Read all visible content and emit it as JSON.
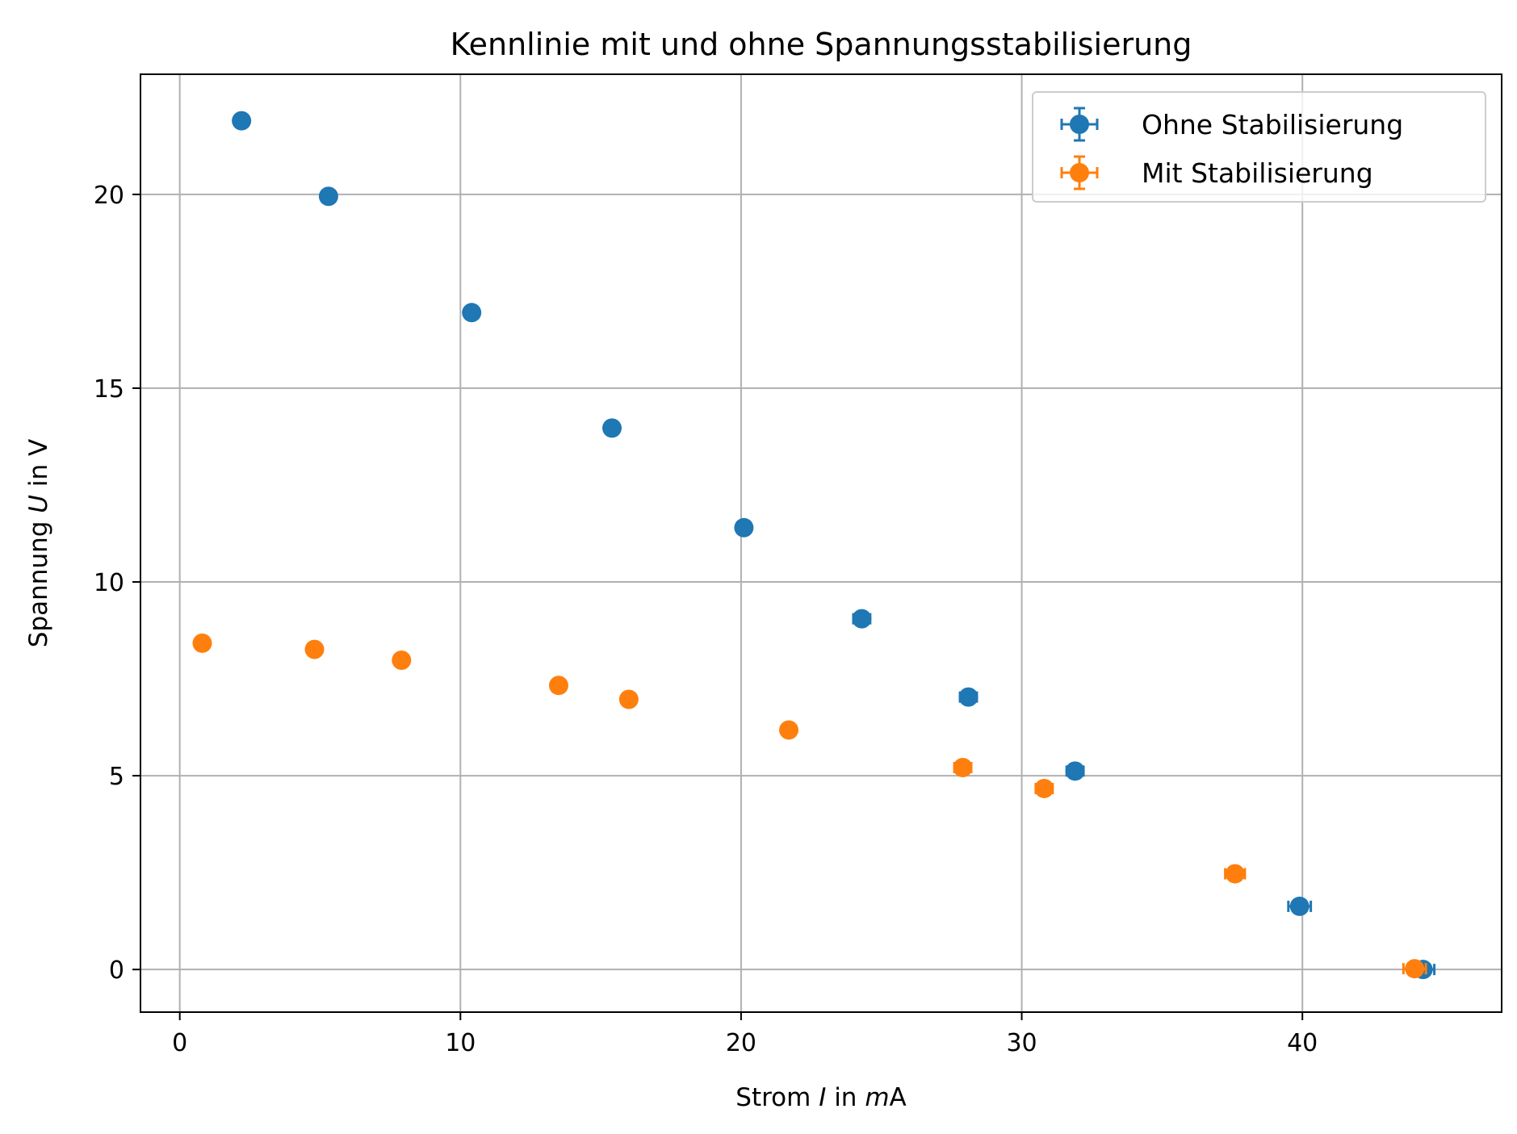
{
  "chart_data": {
    "type": "scatter",
    "title": "Kennlinie mit und ohne Spannungsstabilisierung",
    "xlabel": "Strom I in mA",
    "xlabel_parts": [
      "Strom ",
      "I",
      " in ",
      "m",
      "A"
    ],
    "ylabel": "Spannung U in V",
    "ylabel_parts": [
      "Spannung ",
      "U",
      " in V"
    ],
    "xlim": [
      -1.4,
      47.1
    ],
    "ylim": [
      -1.1,
      23.1
    ],
    "xticks": [
      0,
      10,
      20,
      30,
      40
    ],
    "yticks": [
      0,
      5,
      10,
      15,
      20
    ],
    "grid": true,
    "legend_position": "top-right",
    "series": [
      {
        "name": "Ohne Stabilisierung",
        "color": "#1f77b4",
        "x": [
          2.2,
          5.3,
          10.4,
          15.4,
          20.1,
          24.3,
          28.1,
          31.9,
          39.9,
          44.3
        ],
        "y": [
          21.9,
          19.95,
          16.95,
          13.97,
          11.4,
          9.05,
          7.03,
          5.12,
          1.63,
          0.0
        ],
        "xerr": [
          0.1,
          0.1,
          0.15,
          0.15,
          0.2,
          0.3,
          0.3,
          0.3,
          0.4,
          0.4
        ],
        "yerr": [
          0.05,
          0.05,
          0.05,
          0.05,
          0.05,
          0.05,
          0.05,
          0.05,
          0.05,
          0.05
        ]
      },
      {
        "name": "Mit Stabilisierung",
        "color": "#ff7f0e",
        "x": [
          0.8,
          4.8,
          7.9,
          13.5,
          16.0,
          21.7,
          27.9,
          30.8,
          37.6,
          44.0
        ],
        "y": [
          8.42,
          8.26,
          7.98,
          7.33,
          6.97,
          6.18,
          5.21,
          4.67,
          2.47,
          0.02
        ],
        "xerr": [
          0.05,
          0.05,
          0.1,
          0.1,
          0.15,
          0.15,
          0.3,
          0.3,
          0.35,
          0.4
        ],
        "yerr": [
          0.05,
          0.05,
          0.05,
          0.05,
          0.05,
          0.05,
          0.05,
          0.1,
          0.05,
          0.05
        ]
      }
    ]
  }
}
